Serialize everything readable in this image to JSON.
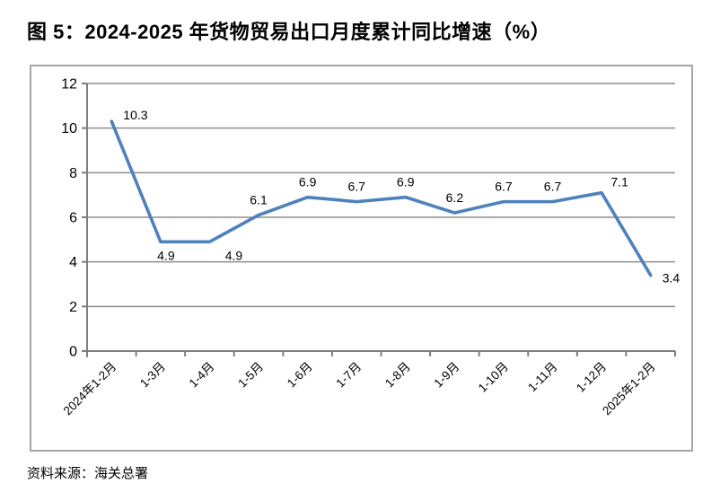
{
  "page": {
    "title": "图 5：2024-2025 年货物贸易出口月度累计同比增速（%）",
    "source": "资料来源：海关总署"
  },
  "chart_data": {
    "type": "line",
    "title": "图 5：2024-2025 年货物贸易出口月度累计同比增速（%）",
    "categories": [
      "2024年1-2月",
      "1-3月",
      "1-4月",
      "1-5月",
      "1-6月",
      "1-7月",
      "1-8月",
      "1-9月",
      "1-10月",
      "1-11月",
      "1-12月",
      "2025年1-2月"
    ],
    "values": [
      10.3,
      4.9,
      4.9,
      6.1,
      6.9,
      6.7,
      6.9,
      6.2,
      6.7,
      6.7,
      7.1,
      3.4
    ],
    "point_labels": [
      "10.3",
      "4.9",
      "4.9",
      "6.1",
      "6.9",
      "6.7",
      "6.9",
      "6.2",
      "6.7",
      "6.7",
      "7.1",
      "3.4"
    ],
    "label_positions": [
      "right-up",
      "below",
      "below-right",
      "above",
      "above",
      "above",
      "above",
      "above",
      "above",
      "above",
      "above-right",
      "right"
    ],
    "xlabel": "",
    "ylabel": "",
    "ylim": [
      0,
      12
    ],
    "yticks": [
      0,
      2,
      4,
      6,
      8,
      10,
      12
    ],
    "grid": true,
    "legend_position": "none",
    "xtick_rotation_deg": 45,
    "colors": {
      "line": "#4f81bd",
      "gridline": "#8e8e8e",
      "axis": "#7f7f7f",
      "frame_border": "#a6a6a6",
      "text": "#000000"
    },
    "source": "资料来源：海关总署"
  }
}
